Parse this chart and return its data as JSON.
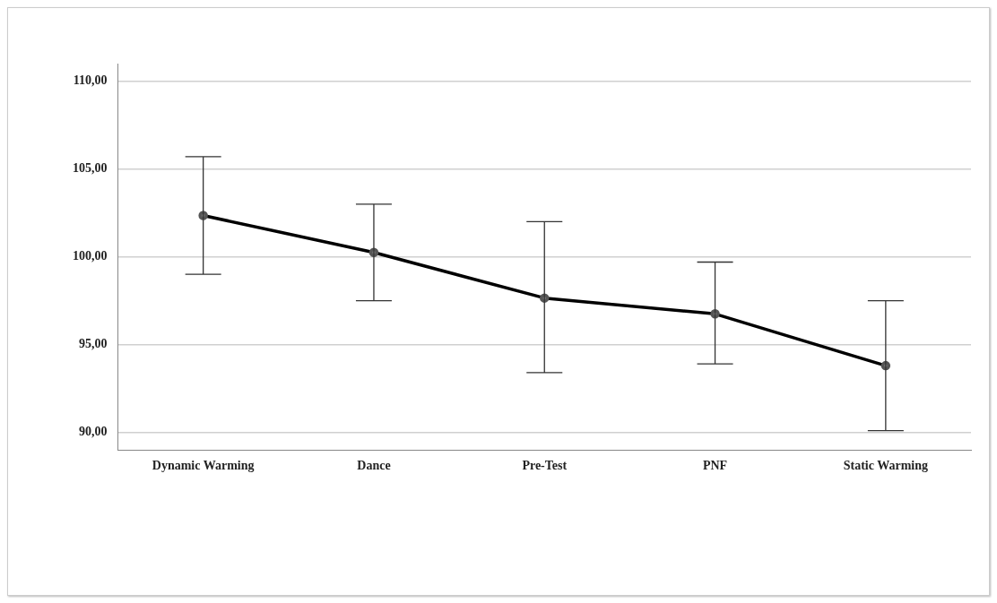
{
  "chart_data": {
    "type": "line",
    "categories": [
      "Dynamic Warming",
      "Dance",
      "Pre-Test",
      "PNF",
      "Static Warming"
    ],
    "series": [
      {
        "color": "#000000",
        "values": [
          102.35,
          100.25,
          97.65,
          96.75,
          93.8
        ],
        "errors": [
          [
            99.0,
            105.7
          ],
          [
            97.5,
            103.0
          ],
          [
            93.4,
            102.0
          ],
          [
            93.9,
            99.7
          ],
          [
            90.1,
            97.5
          ]
        ]
      }
    ],
    "ylim": [
      89,
      111
    ],
    "yticks": [
      {
        "value": 90,
        "label": "90,00"
      },
      {
        "value": 95,
        "label": "95,00"
      },
      {
        "value": 100,
        "label": "100,00"
      },
      {
        "value": 105,
        "label": "105,00"
      },
      {
        "value": 110,
        "label": "110,00"
      }
    ],
    "grid": "y",
    "legend": false,
    "marker": "circle",
    "line_style": "solid"
  }
}
